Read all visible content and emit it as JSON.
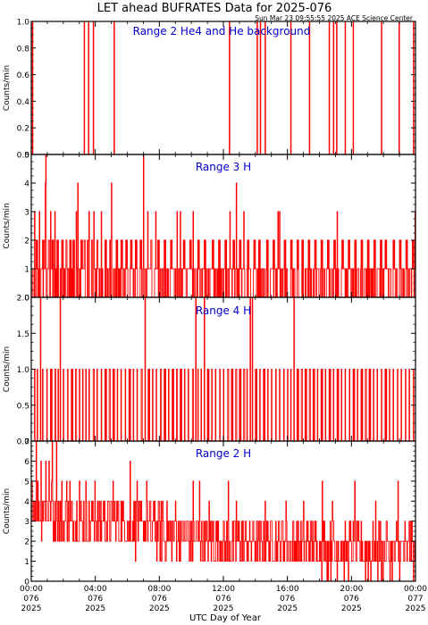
{
  "header": {
    "title": "LET ahead BUFRATES Data for 2025-076",
    "timestamp": "Sun Mar 23 09:55:55 2025 ACE Science Center"
  },
  "colors": {
    "data": "#ff0000",
    "panel_title": "#0000cc",
    "axes": "#000000",
    "background": "#ffffff"
  },
  "x_axis": {
    "label": "UTC Day of Year",
    "range_hours": [
      0,
      24
    ],
    "ticks": [
      {
        "hours": 0,
        "time": "00:00",
        "doy": "076",
        "year": "2025"
      },
      {
        "hours": 4,
        "time": "04:00",
        "doy": "076",
        "year": "2025"
      },
      {
        "hours": 8,
        "time": "08:00",
        "doy": "076",
        "year": "2025"
      },
      {
        "hours": 12,
        "time": "12:00",
        "doy": "076",
        "year": "2025"
      },
      {
        "hours": 16,
        "time": "16:00",
        "doy": "076",
        "year": "2025"
      },
      {
        "hours": 20,
        "time": "20:00",
        "doy": "076",
        "year": "2025"
      },
      {
        "hours": 24,
        "time": "00:00",
        "doy": "077",
        "year": "2025"
      }
    ]
  },
  "chart_data": [
    {
      "type": "line",
      "title": "Range 2 He4 and He background",
      "ylabel": "Counts/min",
      "ylim": [
        0,
        1
      ],
      "yticks": [
        "0.0",
        "0.2",
        "0.4",
        "0.6",
        "0.8",
        "1.0"
      ],
      "spikes_hours": [
        0.05,
        3.3,
        3.55,
        3.85,
        5.15,
        12.35,
        14.1,
        14.3,
        14.6,
        16.2,
        17.35,
        18.6,
        18.85,
        19.05,
        19.6,
        20.1,
        21.85,
        22.95,
        23.85
      ],
      "spike_value": 1
    },
    {
      "type": "line",
      "title": "Range 3 H",
      "ylabel": "Counts/min",
      "ylim": [
        0,
        5
      ],
      "yticks": [
        "0",
        "1",
        "2",
        "3",
        "4",
        "5"
      ],
      "baseline": 1,
      "resolution_minutes": 2,
      "peaks": [
        {
          "hours": 0.9,
          "value": 5
        },
        {
          "hours": 7.0,
          "value": 5
        },
        {
          "hours": 0.85,
          "value": 4
        },
        {
          "hours": 2.9,
          "value": 4
        },
        {
          "hours": 5.0,
          "value": 4
        },
        {
          "hours": 12.8,
          "value": 4
        },
        {
          "hours": 0.2,
          "value": 3
        },
        {
          "hours": 0.5,
          "value": 3
        },
        {
          "hours": 1.2,
          "value": 3
        },
        {
          "hours": 1.45,
          "value": 3
        },
        {
          "hours": 2.8,
          "value": 3
        },
        {
          "hours": 3.6,
          "value": 3
        },
        {
          "hours": 3.9,
          "value": 3
        },
        {
          "hours": 4.35,
          "value": 3
        },
        {
          "hours": 7.25,
          "value": 3
        },
        {
          "hours": 7.75,
          "value": 3
        },
        {
          "hours": 9.1,
          "value": 3
        },
        {
          "hours": 9.3,
          "value": 3
        },
        {
          "hours": 10.1,
          "value": 3
        },
        {
          "hours": 12.4,
          "value": 3
        },
        {
          "hours": 13.25,
          "value": 3
        },
        {
          "hours": 15.4,
          "value": 3
        },
        {
          "hours": 15.5,
          "value": 3
        },
        {
          "hours": 19.1,
          "value": 3
        },
        {
          "hours": 23.95,
          "value": 3
        }
      ],
      "twos_hours": [
        0.3,
        0.7,
        1.05,
        1.3,
        1.6,
        1.9,
        2.15,
        2.4,
        2.6,
        3.1,
        3.3,
        3.5,
        3.75,
        4.1,
        4.6,
        4.9,
        5.3,
        5.6,
        5.9,
        6.2,
        6.5,
        6.8,
        7.45,
        7.9,
        8.3,
        8.7,
        9.5,
        9.9,
        10.4,
        10.8,
        11.3,
        11.7,
        12.1,
        12.6,
        13.0,
        13.5,
        13.9,
        14.2,
        14.7,
        15.1,
        15.8,
        16.2,
        16.6,
        16.9,
        17.3,
        17.7,
        18.1,
        18.5,
        18.9,
        19.4,
        19.8,
        20.2,
        20.6,
        21.0,
        21.4,
        21.8,
        22.1,
        22.6,
        23.0,
        23.4,
        23.8
      ],
      "zeros_hours": [
        0.4,
        1.15,
        2.05,
        2.7,
        3.45,
        4.5,
        5.5,
        6.35,
        7.6,
        8.5,
        9.7,
        10.9,
        11.8,
        12.9,
        13.8,
        14.9,
        15.9,
        16.8,
        17.8,
        18.7,
        19.6,
        20.5,
        21.5,
        22.3,
        22.9,
        23.5,
        23.9
      ]
    },
    {
      "type": "line",
      "title": "Range 4 H",
      "ylabel": "Counts/min",
      "ylim": [
        0,
        2
      ],
      "yticks": [
        "0.0",
        "0.5",
        "1.0",
        "1.5",
        "2.0"
      ],
      "baseline": 0,
      "resolution_minutes": 2,
      "peaks": [
        {
          "hours": 0.55,
          "value": 2
        },
        {
          "hours": 1.8,
          "value": 2
        },
        {
          "hours": 7.1,
          "value": 2
        },
        {
          "hours": 10.25,
          "value": 2
        },
        {
          "hours": 10.8,
          "value": 2
        },
        {
          "hours": 13.65,
          "value": 2
        },
        {
          "hours": 13.8,
          "value": 2
        },
        {
          "hours": 16.4,
          "value": 2
        }
      ],
      "ones_hours": [
        0.2,
        0.35,
        0.7,
        0.95,
        1.2,
        1.45,
        1.65,
        2.0,
        2.25,
        2.5,
        2.75,
        3.0,
        3.2,
        3.4,
        3.6,
        3.85,
        4.1,
        4.35,
        4.6,
        4.85,
        5.1,
        5.35,
        5.6,
        5.85,
        6.1,
        6.35,
        6.6,
        6.85,
        7.3,
        7.55,
        7.8,
        8.05,
        8.3,
        8.55,
        8.8,
        9.05,
        9.3,
        9.55,
        9.8,
        10.05,
        10.4,
        10.6,
        11.0,
        11.25,
        11.5,
        11.75,
        12.0,
        12.25,
        12.5,
        12.75,
        13.0,
        13.25,
        13.45,
        14.0,
        14.25,
        14.5,
        14.75,
        15.0,
        15.25,
        15.5,
        15.75,
        16.0,
        16.2,
        16.6,
        16.85,
        17.1,
        17.35,
        17.6,
        17.85,
        18.1,
        18.35,
        18.6,
        18.85,
        19.1,
        19.35,
        19.6,
        19.85,
        20.1,
        20.35,
        20.6,
        20.85,
        21.1,
        21.35,
        21.6,
        21.85,
        22.1,
        22.35,
        22.6,
        22.85,
        23.1,
        23.35,
        23.6,
        23.85
      ]
    },
    {
      "type": "line",
      "title": "Range 2 H",
      "ylabel": "Counts/min",
      "ylim": [
        0,
        7
      ],
      "yticks": [
        "0",
        "1",
        "2",
        "3",
        "4",
        "5",
        "6",
        "7"
      ],
      "resolution_minutes": 2,
      "envelope": [
        {
          "hours": 0,
          "level": 4
        },
        {
          "hours": 2,
          "level": 3
        },
        {
          "hours": 5,
          "level": 3
        },
        {
          "hours": 8,
          "level": 2.5
        },
        {
          "hours": 12,
          "level": 2
        },
        {
          "hours": 16,
          "level": 2
        },
        {
          "hours": 20,
          "level": 1.5
        },
        {
          "hours": 24,
          "level": 1.5
        }
      ],
      "peaks": [
        {
          "hours": 0.3,
          "value": 7
        },
        {
          "hours": 1.3,
          "value": 7
        },
        {
          "hours": 1.55,
          "value": 7
        },
        {
          "hours": 0.6,
          "value": 6
        },
        {
          "hours": 0.9,
          "value": 6
        },
        {
          "hours": 1.1,
          "value": 6
        },
        {
          "hours": 6.15,
          "value": 6
        },
        {
          "hours": 1.9,
          "value": 5
        },
        {
          "hours": 2.2,
          "value": 5
        },
        {
          "hours": 2.4,
          "value": 5
        },
        {
          "hours": 3.0,
          "value": 5
        },
        {
          "hours": 3.4,
          "value": 5
        },
        {
          "hours": 3.95,
          "value": 5
        },
        {
          "hours": 5.1,
          "value": 5
        },
        {
          "hours": 6.6,
          "value": 5
        },
        {
          "hours": 7.2,
          "value": 5
        },
        {
          "hours": 10.1,
          "value": 5
        },
        {
          "hours": 10.5,
          "value": 5
        },
        {
          "hours": 12.3,
          "value": 5
        },
        {
          "hours": 18.15,
          "value": 5
        },
        {
          "hours": 20.2,
          "value": 5
        },
        {
          "hours": 22.9,
          "value": 5
        },
        {
          "hours": 4.5,
          "value": 4
        },
        {
          "hours": 5.4,
          "value": 4
        },
        {
          "hours": 7.7,
          "value": 4
        },
        {
          "hours": 8.2,
          "value": 4
        },
        {
          "hours": 9.0,
          "value": 4
        },
        {
          "hours": 11.1,
          "value": 4
        },
        {
          "hours": 12.8,
          "value": 4
        },
        {
          "hours": 14.6,
          "value": 4
        },
        {
          "hours": 15.9,
          "value": 4
        },
        {
          "hours": 17.0,
          "value": 4
        },
        {
          "hours": 18.8,
          "value": 4
        },
        {
          "hours": 21.5,
          "value": 4
        },
        {
          "hours": 22.2,
          "value": 3
        },
        {
          "hours": 23.6,
          "value": 3
        }
      ]
    }
  ]
}
